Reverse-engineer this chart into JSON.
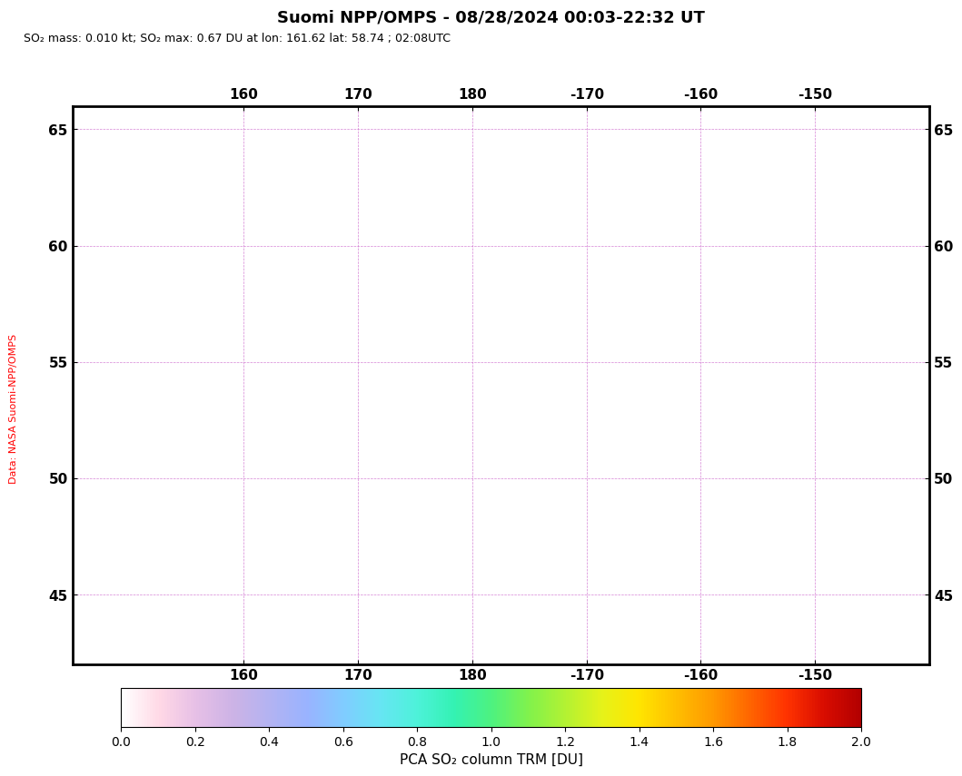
{
  "title": "Suomi NPP/OMPS - 08/28/2024 00:03-22:32 UT",
  "subtitle": "SO₂ mass: 0.010 kt; SO₂ max: 0.67 DU at lon: 161.62 lat: 58.74 ; 02:08UTC",
  "colorbar_label": "PCA SO₂ column TRM [DU]",
  "colorbar_ticks": [
    0.0,
    0.2,
    0.4,
    0.6,
    0.8,
    1.0,
    1.2,
    1.4,
    1.6,
    1.8,
    2.0
  ],
  "lon_min": 145,
  "lon_max": 220,
  "lat_min": 42,
  "lat_max": 66,
  "xticks": [
    160,
    170,
    180,
    -170,
    -160,
    -150
  ],
  "yticks": [
    45,
    50,
    55,
    60,
    65
  ],
  "xlabel_display": [
    "160",
    "170",
    "180",
    "-170",
    "-160",
    "-150"
  ],
  "ylabel_display": [
    "45",
    "50",
    "55",
    "60",
    "65"
  ],
  "background_color": "#ffffff",
  "map_bg_color": "#ffffff",
  "side_label": "Data: NASA Suomi-NPP/OMPS",
  "grid_color": "#cc66cc",
  "grid_linestyle": "--",
  "grid_linewidth": 0.5,
  "coastline_color": "#000000",
  "coastline_linewidth": 0.7,
  "marker_color": "#000000",
  "marker_size": 6,
  "tick_bar_color": "#000000",
  "figure_bg": "#ffffff"
}
